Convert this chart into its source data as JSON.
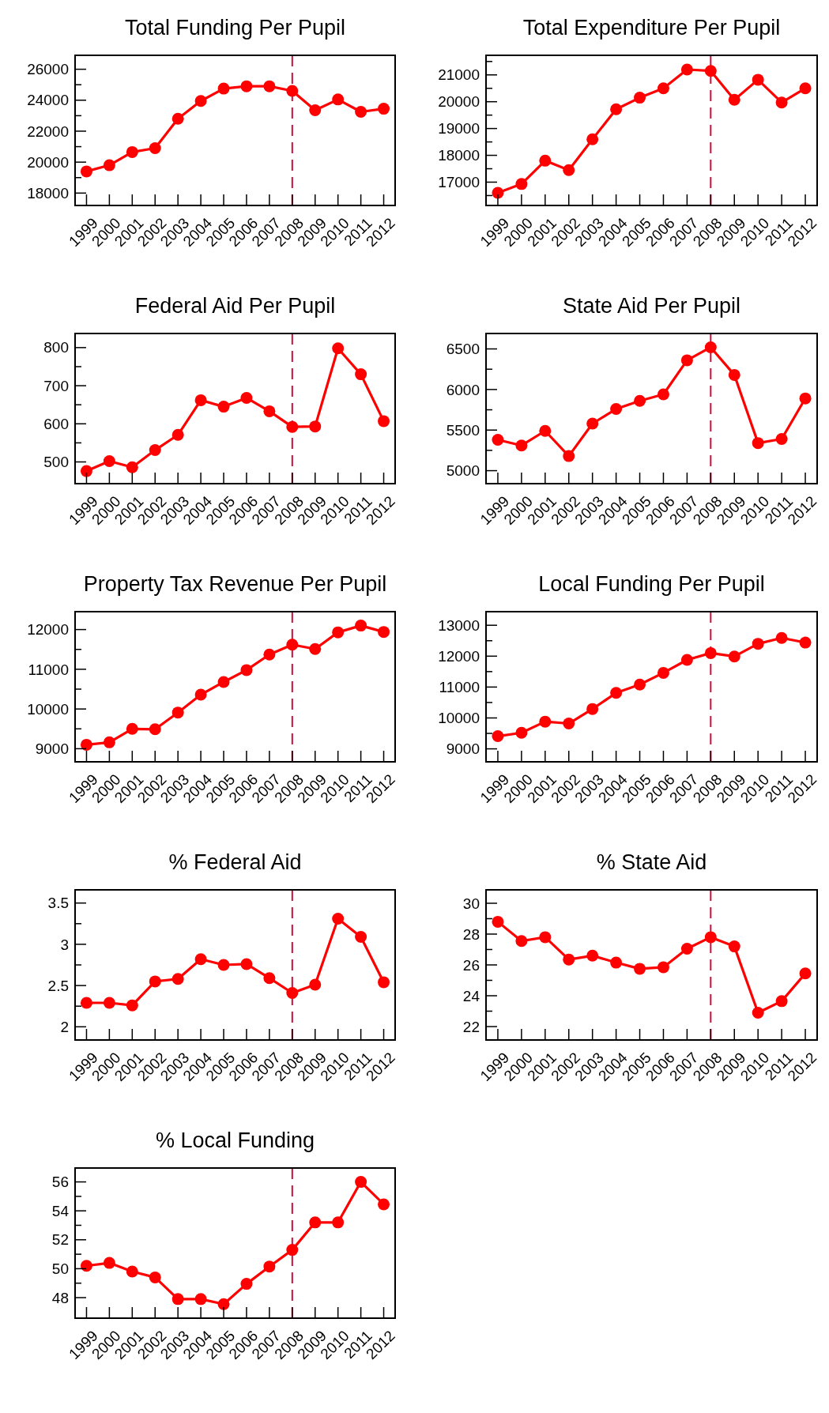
{
  "chart_data": [
    {
      "type": "line",
      "title": "Total Funding Per Pupil",
      "categories": [
        "1999",
        "2000",
        "2001",
        "2002",
        "2003",
        "2004",
        "2005",
        "2006",
        "2007",
        "2008",
        "2009",
        "2010",
        "2011",
        "2012"
      ],
      "series": [
        {
          "color": "#ff0000",
          "values": [
            19400,
            19800,
            20650,
            20900,
            22800,
            23950,
            24750,
            24900,
            24900,
            24600,
            23350,
            24050,
            23250,
            23450
          ]
        }
      ],
      "ylim": [
        17200,
        26900
      ],
      "yticks": [
        18000,
        {
          "value": 19000,
          "label": null
        },
        20000,
        {
          "value": 21000,
          "label": null
        },
        22000,
        {
          "value": 23000,
          "label": null
        },
        24000,
        {
          "value": 25000,
          "label": null
        },
        26000
      ],
      "marker": "circle",
      "line_style": "solid",
      "ref_lines": [
        {
          "axis": "x",
          "value": "2008",
          "color": "#c8103c",
          "line_style": "dashed"
        }
      ]
    },
    {
      "type": "line",
      "title": "Total Expenditure Per Pupil",
      "categories": [
        "1999",
        "2000",
        "2001",
        "2002",
        "2003",
        "2004",
        "2005",
        "2006",
        "2007",
        "2008",
        "2009",
        "2010",
        "2011",
        "2012"
      ],
      "series": [
        {
          "color": "#ff0000",
          "values": [
            16600,
            16930,
            17800,
            17450,
            18600,
            19720,
            20150,
            20500,
            21200,
            21150,
            20070,
            20820,
            19970,
            20500
          ]
        }
      ],
      "ylim": [
        16130,
        21730
      ],
      "yticks": [
        {
          "value": 16500,
          "label": null
        },
        17000,
        {
          "value": 17500,
          "label": null
        },
        18000,
        {
          "value": 18500,
          "label": null
        },
        19000,
        {
          "value": 19500,
          "label": null
        },
        20000,
        {
          "value": 20500,
          "label": null
        },
        21000,
        {
          "value": 21500,
          "label": null
        }
      ],
      "marker": "circle",
      "line_style": "solid",
      "ref_lines": [
        {
          "axis": "x",
          "value": "2008",
          "color": "#c8103c",
          "line_style": "dashed"
        }
      ]
    },
    {
      "type": "line",
      "title": "Federal Aid Per Pupil",
      "categories": [
        "1999",
        "2000",
        "2001",
        "2002",
        "2003",
        "2004",
        "2005",
        "2006",
        "2007",
        "2008",
        "2009",
        "2010",
        "2011",
        "2012"
      ],
      "series": [
        {
          "color": "#ff0000",
          "values": [
            476,
            502,
            486,
            531,
            571,
            662,
            645,
            668,
            633,
            592,
            593,
            798,
            730,
            607
          ]
        }
      ],
      "ylim": [
        443,
        837
      ],
      "yticks": [
        500,
        {
          "value": 550,
          "label": null
        },
        600,
        {
          "value": 650,
          "label": null
        },
        700,
        {
          "value": 750,
          "label": null
        },
        800
      ],
      "marker": "circle",
      "line_style": "solid",
      "ref_lines": [
        {
          "axis": "x",
          "value": "2008",
          "color": "#c8103c",
          "line_style": "dashed"
        }
      ]
    },
    {
      "type": "line",
      "title": "State Aid Per Pupil",
      "categories": [
        "1999",
        "2000",
        "2001",
        "2002",
        "2003",
        "2004",
        "2005",
        "2006",
        "2007",
        "2008",
        "2009",
        "2010",
        "2011",
        "2012"
      ],
      "series": [
        {
          "color": "#ff0000",
          "values": [
            5380,
            5310,
            5490,
            5180,
            5580,
            5760,
            5860,
            5940,
            6360,
            6520,
            6180,
            5340,
            5390,
            5890
          ]
        }
      ],
      "ylim": [
        4840,
        6690
      ],
      "yticks": [
        5000,
        {
          "value": 5250,
          "label": null
        },
        5500,
        {
          "value": 5750,
          "label": null
        },
        6000,
        {
          "value": 6250,
          "label": null
        },
        6500
      ],
      "marker": "circle",
      "line_style": "solid",
      "ref_lines": [
        {
          "axis": "x",
          "value": "2008",
          "color": "#c8103c",
          "line_style": "dashed"
        }
      ]
    },
    {
      "type": "line",
      "title": "Property Tax Revenue Per Pupil",
      "categories": [
        "1999",
        "2000",
        "2001",
        "2002",
        "2003",
        "2004",
        "2005",
        "2006",
        "2007",
        "2008",
        "2009",
        "2010",
        "2011",
        "2012"
      ],
      "series": [
        {
          "color": "#ff0000",
          "values": [
            9100,
            9160,
            9500,
            9490,
            9910,
            10360,
            10680,
            10980,
            11370,
            11620,
            11510,
            11930,
            12100,
            11940
          ]
        }
      ],
      "ylim": [
        8670,
        12450
      ],
      "yticks": [
        9000,
        {
          "value": 9500,
          "label": null
        },
        10000,
        {
          "value": 10500,
          "label": null
        },
        11000,
        {
          "value": 11500,
          "label": null
        },
        12000
      ],
      "marker": "circle",
      "line_style": "solid",
      "ref_lines": [
        {
          "axis": "x",
          "value": "2008",
          "color": "#c8103c",
          "line_style": "dashed"
        }
      ]
    },
    {
      "type": "line",
      "title": "Local Funding Per Pupil",
      "categories": [
        "1999",
        "2000",
        "2001",
        "2002",
        "2003",
        "2004",
        "2005",
        "2006",
        "2007",
        "2008",
        "2009",
        "2010",
        "2011",
        "2012"
      ],
      "series": [
        {
          "color": "#ff0000",
          "values": [
            9410,
            9520,
            9880,
            9820,
            10290,
            10810,
            11080,
            11460,
            11880,
            12100,
            11990,
            12400,
            12590,
            12440
          ]
        }
      ],
      "ylim": [
        8580,
        13440
      ],
      "yticks": [
        9000,
        {
          "value": 9500,
          "label": null
        },
        10000,
        {
          "value": 10500,
          "label": null
        },
        11000,
        {
          "value": 11500,
          "label": null
        },
        12000,
        {
          "value": 12500,
          "label": null
        },
        13000
      ],
      "marker": "circle",
      "line_style": "solid",
      "ref_lines": [
        {
          "axis": "x",
          "value": "2008",
          "color": "#c8103c",
          "line_style": "dashed"
        }
      ]
    },
    {
      "type": "line",
      "title": "% Federal Aid",
      "categories": [
        "1999",
        "2000",
        "2001",
        "2002",
        "2003",
        "2004",
        "2005",
        "2006",
        "2007",
        "2008",
        "2009",
        "2010",
        "2011",
        "2012"
      ],
      "series": [
        {
          "color": "#ff0000",
          "values": [
            2.29,
            2.29,
            2.26,
            2.55,
            2.58,
            2.82,
            2.75,
            2.76,
            2.59,
            2.41,
            2.51,
            3.31,
            3.09,
            2.54
          ]
        }
      ],
      "ylim": [
        1.84,
        3.66
      ],
      "yticks": [
        2,
        {
          "value": 2.25,
          "label": null
        },
        2.5,
        {
          "value": 2.75,
          "label": null
        },
        3,
        {
          "value": 3.25,
          "label": null
        },
        3.5
      ],
      "marker": "circle",
      "line_style": "solid",
      "ref_lines": [
        {
          "axis": "x",
          "value": "2008",
          "color": "#c8103c",
          "line_style": "dashed"
        }
      ]
    },
    {
      "type": "line",
      "title": "% State Aid",
      "categories": [
        "1999",
        "2000",
        "2001",
        "2002",
        "2003",
        "2004",
        "2005",
        "2006",
        "2007",
        "2008",
        "2009",
        "2010",
        "2011",
        "2012"
      ],
      "series": [
        {
          "color": "#ff0000",
          "values": [
            28.8,
            27.55,
            27.8,
            26.35,
            26.6,
            26.15,
            25.75,
            25.85,
            27.05,
            27.8,
            27.2,
            22.9,
            23.65,
            25.45
          ]
        }
      ],
      "ylim": [
        21.13,
        30.87
      ],
      "yticks": [
        22,
        {
          "value": 23,
          "label": null
        },
        24,
        {
          "value": 25,
          "label": null
        },
        26,
        {
          "value": 27,
          "label": null
        },
        28,
        {
          "value": 29,
          "label": null
        },
        30
      ],
      "marker": "circle",
      "line_style": "solid",
      "ref_lines": [
        {
          "axis": "x",
          "value": "2008",
          "color": "#c8103c",
          "line_style": "dashed"
        }
      ]
    },
    {
      "type": "line",
      "title": "% Local Funding",
      "categories": [
        "1999",
        "2000",
        "2001",
        "2002",
        "2003",
        "2004",
        "2005",
        "2006",
        "2007",
        "2008",
        "2009",
        "2010",
        "2011",
        "2012"
      ],
      "series": [
        {
          "color": "#ff0000",
          "values": [
            50.2,
            50.4,
            49.8,
            49.4,
            47.9,
            47.9,
            47.55,
            48.95,
            50.15,
            51.3,
            53.2,
            53.2,
            56.0,
            54.45
          ]
        }
      ],
      "ylim": [
        46.58,
        56.96
      ],
      "yticks": [
        48,
        {
          "value": 49,
          "label": null
        },
        50,
        {
          "value": 51,
          "label": null
        },
        52,
        {
          "value": 53,
          "label": null
        },
        54,
        {
          "value": 55,
          "label": null
        },
        56
      ],
      "marker": "circle",
      "line_style": "solid",
      "ref_lines": [
        {
          "axis": "x",
          "value": "2008",
          "color": "#c8103c",
          "line_style": "dashed"
        }
      ]
    }
  ]
}
